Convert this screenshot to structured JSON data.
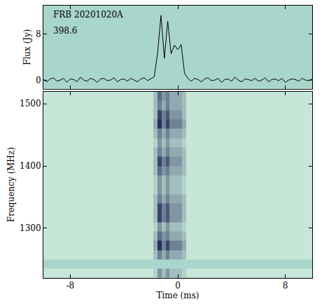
{
  "chart_data": [
    {
      "type": "line",
      "ylabel": "Flux (Jy)",
      "annotations": [
        "FRB 20201020A",
        "398.6"
      ],
      "color": "#000000",
      "xlim": [
        -10,
        10
      ],
      "xticks": [
        -8,
        0,
        8
      ],
      "ylim": [
        -1.5,
        13
      ],
      "yticks": [
        0,
        8
      ],
      "tick_labels": "y",
      "x": [
        -10,
        -9.75,
        -9.5,
        -9.25,
        -9,
        -8.75,
        -8.5,
        -8.25,
        -8,
        -7.75,
        -7.5,
        -7.25,
        -7,
        -6.75,
        -6.5,
        -6.25,
        -6,
        -5.75,
        -5.5,
        -5.25,
        -5,
        -4.75,
        -4.5,
        -4.25,
        -4,
        -3.75,
        -3.5,
        -3.25,
        -3,
        -2.75,
        -2.5,
        -2.25,
        -2,
        -1.75,
        -1.5,
        -1.25,
        -1,
        -0.75,
        -0.5,
        -0.25,
        0,
        0.25,
        0.5,
        0.75,
        1,
        1.25,
        1.5,
        1.75,
        2,
        2.25,
        2.5,
        2.75,
        3,
        3.25,
        3.5,
        3.75,
        4,
        4.25,
        4.5,
        4.75,
        5,
        5.25,
        5.5,
        5.75,
        6,
        6.25,
        6.5,
        6.75,
        7,
        7.25,
        7.5,
        7.75,
        8,
        8.25,
        8.5,
        8.75,
        9,
        9.25,
        9.5,
        9.75,
        10
      ],
      "values": [
        0.1,
        -0.3,
        0.2,
        0.4,
        -0.2,
        0.0,
        0.3,
        -0.4,
        0.2,
        0.1,
        -0.3,
        0.5,
        0.0,
        -0.2,
        0.3,
        0.1,
        -0.4,
        0.2,
        0.3,
        -0.1,
        0.0,
        0.4,
        -0.3,
        0.1,
        0.2,
        -0.2,
        0.3,
        0.0,
        -0.3,
        0.2,
        0.4,
        -0.1,
        0.2,
        0.6,
        4.8,
        11.3,
        3.8,
        10.3,
        4.6,
        6.1,
        5.3,
        6.2,
        1.2,
        0.3,
        -0.2,
        0.3,
        0.1,
        -0.3,
        0.2,
        0.4,
        -0.1,
        0.0,
        0.3,
        -0.4,
        0.1,
        0.2,
        -0.2,
        0.5,
        0.0,
        -0.3,
        0.2,
        0.1,
        -0.1,
        0.3,
        -0.2,
        0.0,
        0.4,
        -0.3,
        0.1,
        0.2,
        -0.1,
        0.3,
        -0.4,
        0.0,
        0.2,
        0.1,
        -0.2,
        0.3,
        0.0,
        -0.1,
        0.2
      ]
    },
    {
      "type": "heatmap",
      "xlabel": "Time (ms)",
      "ylabel": "Frequency (MHz)",
      "xlim": [
        -10,
        10
      ],
      "xticks": [
        -8,
        0,
        8
      ],
      "ylim": [
        1220,
        1520
      ],
      "yticks": [
        1300,
        1400,
        1500
      ],
      "colors": [
        "#c6e6d8",
        "#26305f"
      ],
      "zlim": [
        0,
        9
      ],
      "x_edges": [
        -10,
        -1.8,
        -1.5,
        -1.2,
        -0.9,
        -0.6,
        -0.3,
        0,
        0.3,
        0.6,
        10
      ],
      "y_edges": [
        1220,
        1235,
        1250,
        1265,
        1280,
        1295,
        1310,
        1325,
        1340,
        1355,
        1370,
        1385,
        1400,
        1415,
        1430,
        1445,
        1460,
        1475,
        1490,
        1505,
        1520
      ],
      "cells": [
        [
          0,
          1,
          4,
          2,
          4,
          2,
          2,
          2,
          1,
          0
        ],
        [
          null,
          null,
          null,
          null,
          null,
          null,
          null,
          null,
          null,
          null
        ],
        [
          0,
          2,
          5,
          3,
          5,
          3,
          3,
          3,
          2,
          0
        ],
        [
          0,
          3,
          9,
          5,
          8,
          5,
          5,
          5,
          3,
          0
        ],
        [
          0,
          2,
          6,
          4,
          5,
          3,
          3,
          3,
          2,
          0
        ],
        [
          0,
          1,
          4,
          2,
          4,
          2,
          2,
          2,
          1,
          0
        ],
        [
          0,
          2,
          8,
          5,
          7,
          4,
          4,
          4,
          2,
          0
        ],
        [
          0,
          2,
          8,
          5,
          7,
          4,
          4,
          4,
          2,
          0
        ],
        [
          0,
          2,
          5,
          3,
          5,
          3,
          3,
          3,
          2,
          0
        ],
        [
          0,
          1,
          4,
          2,
          4,
          2,
          2,
          2,
          1,
          0
        ],
        [
          0,
          1,
          4,
          2,
          4,
          2,
          2,
          2,
          1,
          0
        ],
        [
          0,
          2,
          6,
          4,
          5,
          3,
          3,
          3,
          2,
          0
        ],
        [
          0,
          2,
          8,
          5,
          7,
          4,
          4,
          4,
          2,
          0
        ],
        [
          0,
          2,
          5,
          3,
          5,
          3,
          3,
          3,
          2,
          0
        ],
        [
          0,
          1,
          4,
          2,
          4,
          2,
          2,
          2,
          1,
          0
        ],
        [
          0,
          2,
          5,
          3,
          5,
          3,
          3,
          3,
          2,
          0
        ],
        [
          0,
          3,
          9,
          5,
          8,
          5,
          5,
          5,
          3,
          0
        ],
        [
          0,
          2,
          8,
          5,
          7,
          4,
          4,
          4,
          2,
          0
        ],
        [
          0,
          2,
          5,
          3,
          5,
          3,
          3,
          3,
          2,
          0
        ],
        [
          0,
          2,
          6,
          4,
          5,
          3,
          3,
          3,
          2,
          0
        ]
      ]
    }
  ]
}
